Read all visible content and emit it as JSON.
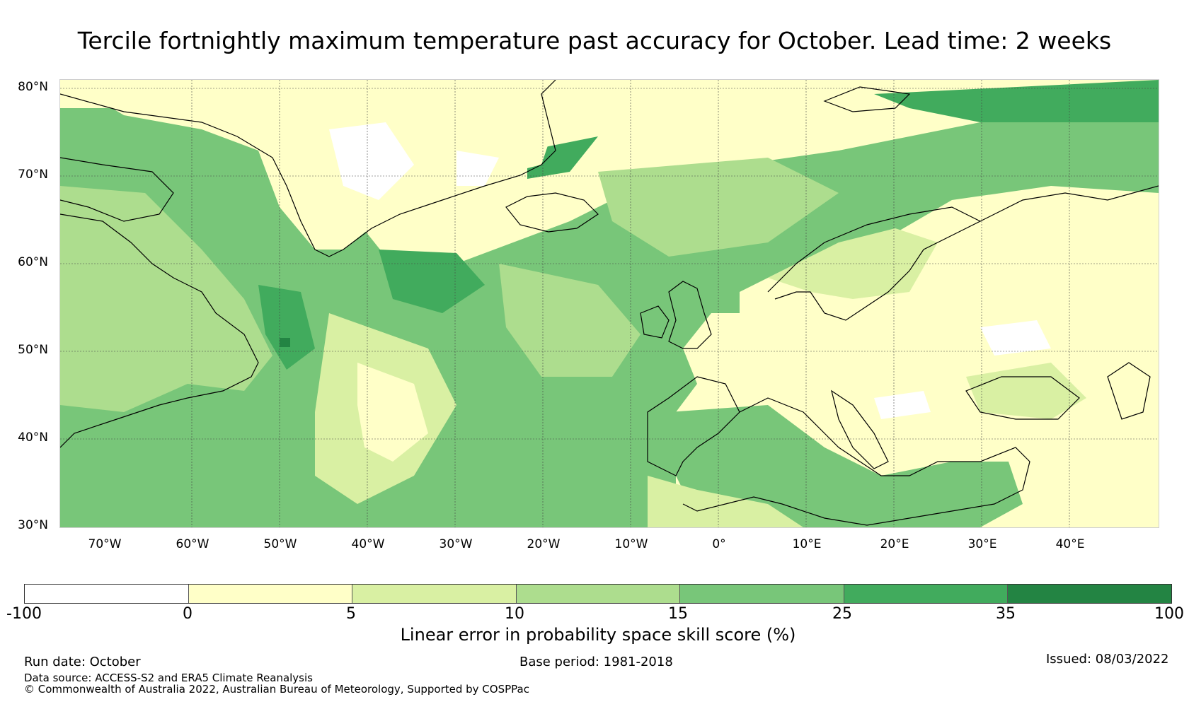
{
  "title": "Tercile fortnightly maximum temperature past accuracy for October. Lead time: 2 weeks",
  "map": {
    "lat_labels": [
      "80°N",
      "70°N",
      "60°N",
      "50°N",
      "40°N",
      "30°N"
    ],
    "lon_labels": [
      "70°W",
      "60°W",
      "50°W",
      "40°W",
      "30°W",
      "20°W",
      "10°W",
      "0°",
      "10°E",
      "20°E",
      "30°E",
      "40°E"
    ],
    "lat_range": [
      30,
      81
    ],
    "lon_range": [
      -75,
      50
    ]
  },
  "colorbar": {
    "ticks": [
      "-100",
      "0",
      "5",
      "10",
      "15",
      "25",
      "35",
      "100"
    ],
    "colors": [
      "#ffffff",
      "#ffffc8",
      "#d9f0a3",
      "#addd8e",
      "#78c679",
      "#41ab5d",
      "#238443"
    ],
    "label": "Linear error in probability space skill score (%)"
  },
  "footer": {
    "run_date": "Run date: October",
    "base_period": "Base period: 1981-2018",
    "issued": "Issued: 08/03/2022",
    "data_source": "Data source: ACCESS-S2 and ERA5 Climate Reanalysis",
    "copyright": "© Commonwealth of Australia 2022, Australian Bureau of Meteorology, Supported by COSPPac"
  }
}
